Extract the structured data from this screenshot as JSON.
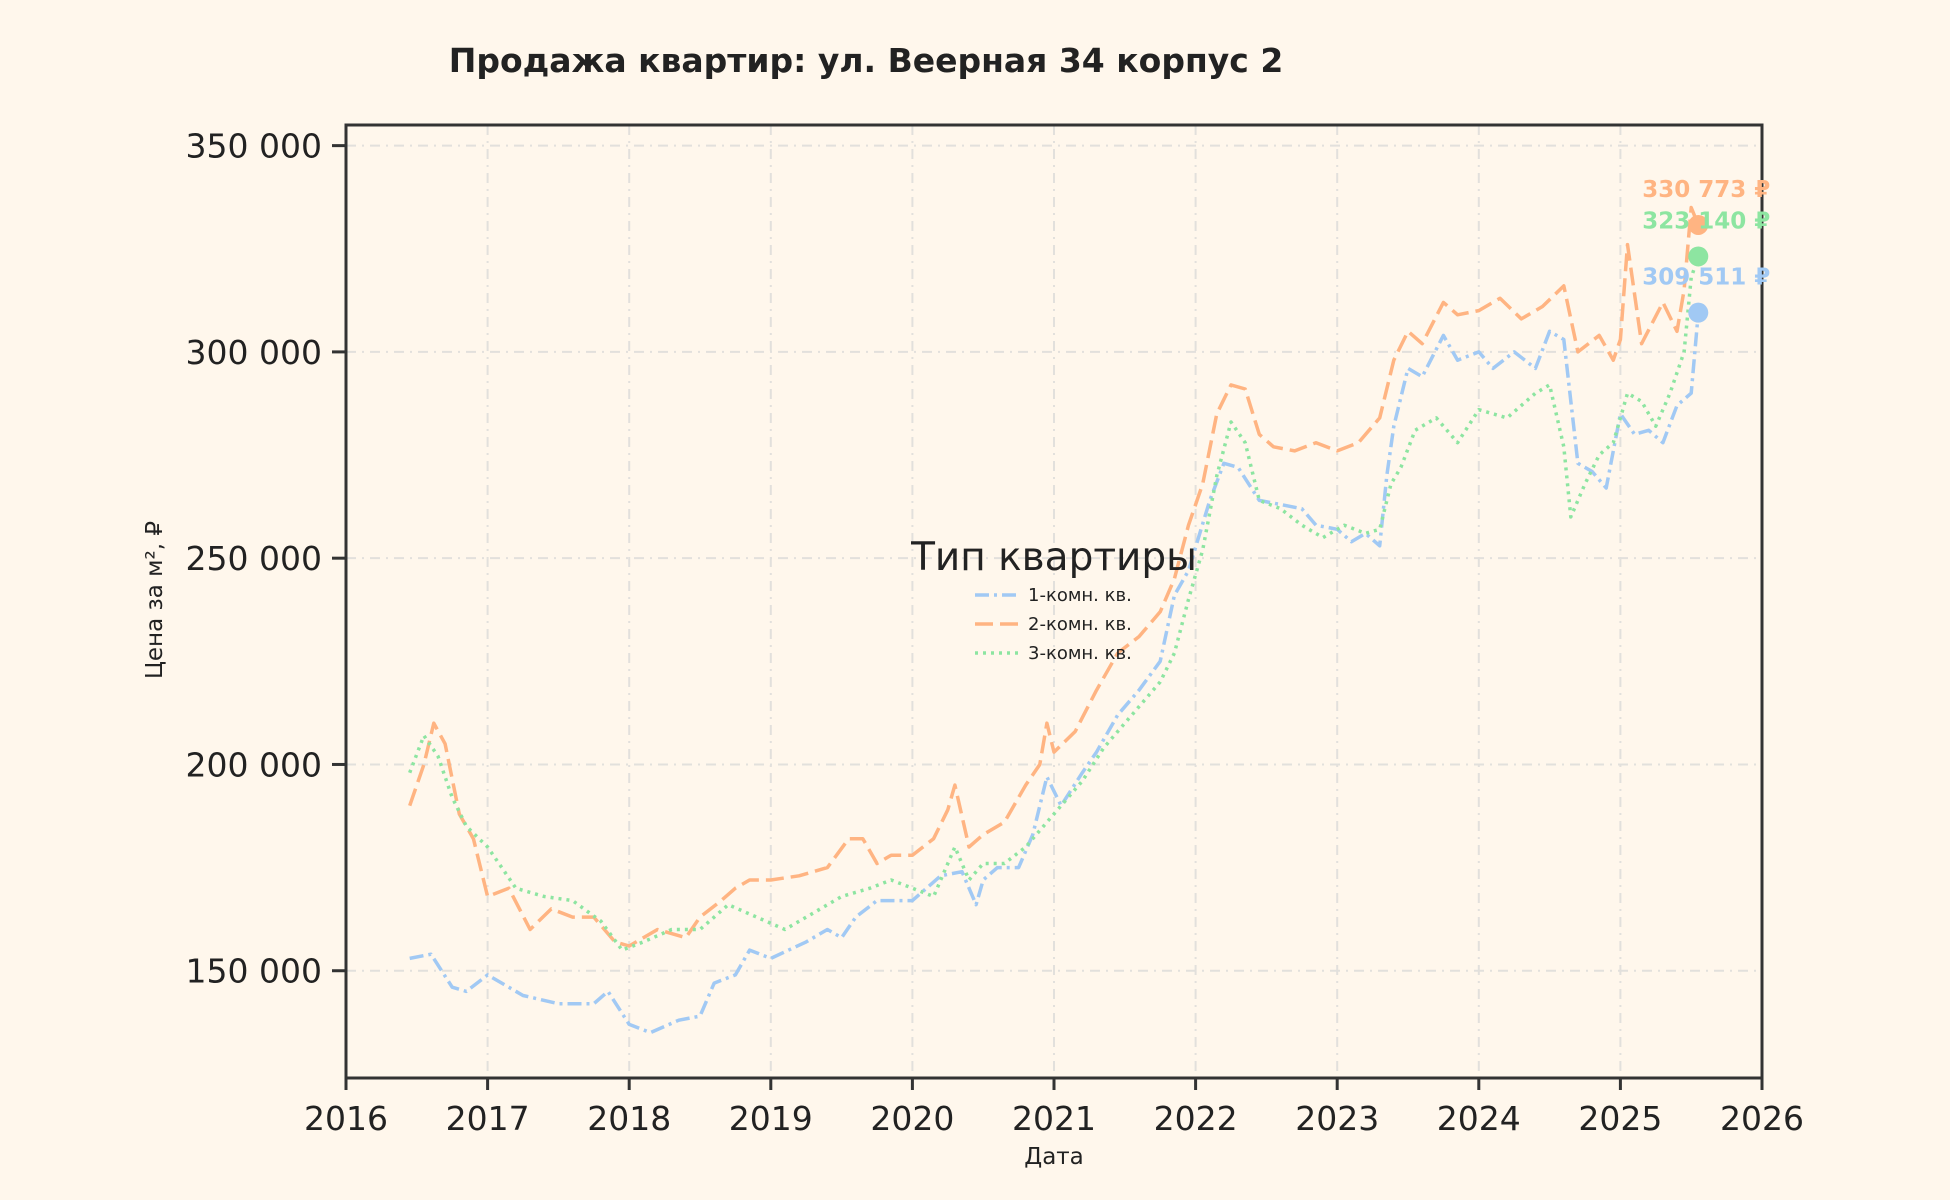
{
  "chart_data": {
    "type": "line",
    "title": "Продажа квартир: ул. Веерная 34 корпус 2",
    "xlabel": "Дата",
    "ylabel": "Цена за м², ₽",
    "xlim": [
      2016.0,
      2026.0
    ],
    "ylim": [
      124000,
      355000
    ],
    "x_ticks": [
      "2016",
      "2017",
      "2018",
      "2019",
      "2020",
      "2021",
      "2022",
      "2023",
      "2024",
      "2025",
      "2026"
    ],
    "y_ticks": [
      {
        "value": 150000,
        "label": "150 000"
      },
      {
        "value": 200000,
        "label": "200 000"
      },
      {
        "value": 250000,
        "label": "250 000"
      },
      {
        "value": 300000,
        "label": "300 000"
      },
      {
        "value": 350000,
        "label": "350 000"
      }
    ],
    "grid": true,
    "legend": {
      "title": "Тип квартиры",
      "position": "center"
    },
    "series": [
      {
        "name": "1-комн. кв.",
        "color": "#a1c9f4",
        "dash": "dashdot",
        "end_label": "309 511 ₽",
        "end_value": 309511,
        "x": [
          2016.45,
          2016.6,
          2016.75,
          2016.85,
          2017.0,
          2017.25,
          2017.5,
          2017.75,
          2017.85,
          2018.0,
          2018.15,
          2018.35,
          2018.5,
          2018.6,
          2018.75,
          2018.85,
          2019.0,
          2019.25,
          2019.4,
          2019.5,
          2019.6,
          2019.75,
          2019.85,
          2020.0,
          2020.2,
          2020.35,
          2020.45,
          2020.5,
          2020.6,
          2020.75,
          2020.85,
          2020.95,
          2021.05,
          2021.2,
          2021.3,
          2021.45,
          2021.6,
          2021.75,
          2021.85,
          2021.95,
          2022.1,
          2022.2,
          2022.3,
          2022.45,
          2022.6,
          2022.75,
          2022.85,
          2023.0,
          2023.1,
          2023.2,
          2023.3,
          2023.35,
          2023.4,
          2023.5,
          2023.6,
          2023.75,
          2023.85,
          2024.0,
          2024.1,
          2024.25,
          2024.4,
          2024.5,
          2024.6,
          2024.7,
          2024.8,
          2024.9,
          2025.0,
          2025.1,
          2025.2,
          2025.3,
          2025.4,
          2025.5,
          2025.55
        ],
        "values": [
          153000,
          154000,
          146000,
          145000,
          149000,
          144000,
          142000,
          142000,
          145000,
          137000,
          135000,
          138000,
          139000,
          147000,
          149000,
          155000,
          153000,
          157000,
          160000,
          158000,
          163000,
          167000,
          167000,
          167000,
          173000,
          174000,
          166000,
          172000,
          175000,
          175000,
          183000,
          197000,
          190000,
          198000,
          203000,
          212000,
          218000,
          225000,
          241000,
          247000,
          264000,
          273000,
          272000,
          264000,
          263000,
          262000,
          258000,
          257000,
          254000,
          256000,
          253000,
          270000,
          282000,
          296000,
          294000,
          304000,
          298000,
          300000,
          296000,
          300000,
          296000,
          305000,
          303000,
          273000,
          271000,
          267000,
          285000,
          280000,
          281000,
          278000,
          287000,
          290000,
          309511
        ]
      },
      {
        "name": "2-комн. кв.",
        "color": "#ffb482",
        "dash": "dash",
        "end_label": "330 773 ₽",
        "end_value": 330773,
        "x": [
          2016.45,
          2016.55,
          2016.62,
          2016.7,
          2016.8,
          2016.9,
          2017.0,
          2017.15,
          2017.3,
          2017.45,
          2017.6,
          2017.75,
          2017.9,
          2018.0,
          2018.2,
          2018.4,
          2018.5,
          2018.65,
          2018.75,
          2018.85,
          2019.0,
          2019.2,
          2019.4,
          2019.55,
          2019.65,
          2019.75,
          2019.85,
          2020.0,
          2020.15,
          2020.25,
          2020.3,
          2020.4,
          2020.5,
          2020.65,
          2020.8,
          2020.9,
          2020.95,
          2021.0,
          2021.15,
          2021.3,
          2021.45,
          2021.6,
          2021.75,
          2021.85,
          2021.95,
          2022.05,
          2022.15,
          2022.25,
          2022.35,
          2022.45,
          2022.55,
          2022.7,
          2022.85,
          2023.0,
          2023.15,
          2023.3,
          2023.4,
          2023.5,
          2023.6,
          2023.75,
          2023.85,
          2024.0,
          2024.15,
          2024.3,
          2024.45,
          2024.6,
          2024.7,
          2024.85,
          2024.95,
          2025.0,
          2025.05,
          2025.15,
          2025.3,
          2025.4,
          2025.45,
          2025.5,
          2025.55
        ],
        "values": [
          190000,
          200000,
          210000,
          205000,
          188000,
          182000,
          168000,
          170000,
          160000,
          165000,
          163000,
          163000,
          157000,
          156000,
          160000,
          158000,
          163000,
          167000,
          170000,
          172000,
          172000,
          173000,
          175000,
          182000,
          182000,
          176000,
          178000,
          178000,
          182000,
          189000,
          195000,
          180000,
          183000,
          186000,
          195000,
          200000,
          210000,
          203000,
          208000,
          218000,
          227000,
          231000,
          237000,
          245000,
          258000,
          268000,
          285000,
          292000,
          291000,
          280000,
          277000,
          276000,
          278000,
          276000,
          278000,
          284000,
          298000,
          305000,
          302000,
          312000,
          309000,
          310000,
          313000,
          308000,
          311000,
          316000,
          300000,
          304000,
          298000,
          303000,
          326000,
          302000,
          312000,
          305000,
          315000,
          335000,
          330773
        ]
      },
      {
        "name": "3-комн. кв.",
        "color": "#8de5a1",
        "dash": "dot",
        "end_label": "323 140 ₽",
        "end_value": 323140,
        "x": [
          2016.45,
          2016.55,
          2016.65,
          2016.75,
          2016.85,
          2017.0,
          2017.2,
          2017.4,
          2017.6,
          2017.8,
          2017.95,
          2018.1,
          2018.3,
          2018.5,
          2018.7,
          2018.9,
          2019.1,
          2019.3,
          2019.5,
          2019.7,
          2019.85,
          2020.0,
          2020.15,
          2020.3,
          2020.4,
          2020.5,
          2020.65,
          2020.8,
          2020.95,
          2021.05,
          2021.2,
          2021.35,
          2021.5,
          2021.65,
          2021.75,
          2021.85,
          2021.95,
          2022.05,
          2022.15,
          2022.25,
          2022.35,
          2022.45,
          2022.6,
          2022.75,
          2022.9,
          2023.05,
          2023.2,
          2023.3,
          2023.38,
          2023.45,
          2023.55,
          2023.7,
          2023.85,
          2024.0,
          2024.2,
          2024.4,
          2024.5,
          2024.6,
          2024.65,
          2024.75,
          2024.85,
          2024.95,
          2025.05,
          2025.15,
          2025.25,
          2025.35,
          2025.45,
          2025.5,
          2025.55
        ],
        "values": [
          198000,
          207000,
          202000,
          192000,
          185000,
          180000,
          170000,
          168000,
          167000,
          162000,
          155000,
          157000,
          160000,
          160000,
          166000,
          163000,
          160000,
          164000,
          168000,
          170000,
          172000,
          170000,
          168000,
          180000,
          172000,
          176000,
          176000,
          180000,
          186000,
          190000,
          196000,
          204000,
          210000,
          216000,
          220000,
          227000,
          240000,
          252000,
          270000,
          283000,
          278000,
          264000,
          262000,
          258000,
          255000,
          258000,
          256000,
          257000,
          268000,
          272000,
          281000,
          284000,
          278000,
          286000,
          284000,
          290000,
          292000,
          277000,
          260000,
          268000,
          275000,
          278000,
          290000,
          288000,
          282000,
          290000,
          300000,
          318000,
          323140
        ]
      }
    ]
  }
}
